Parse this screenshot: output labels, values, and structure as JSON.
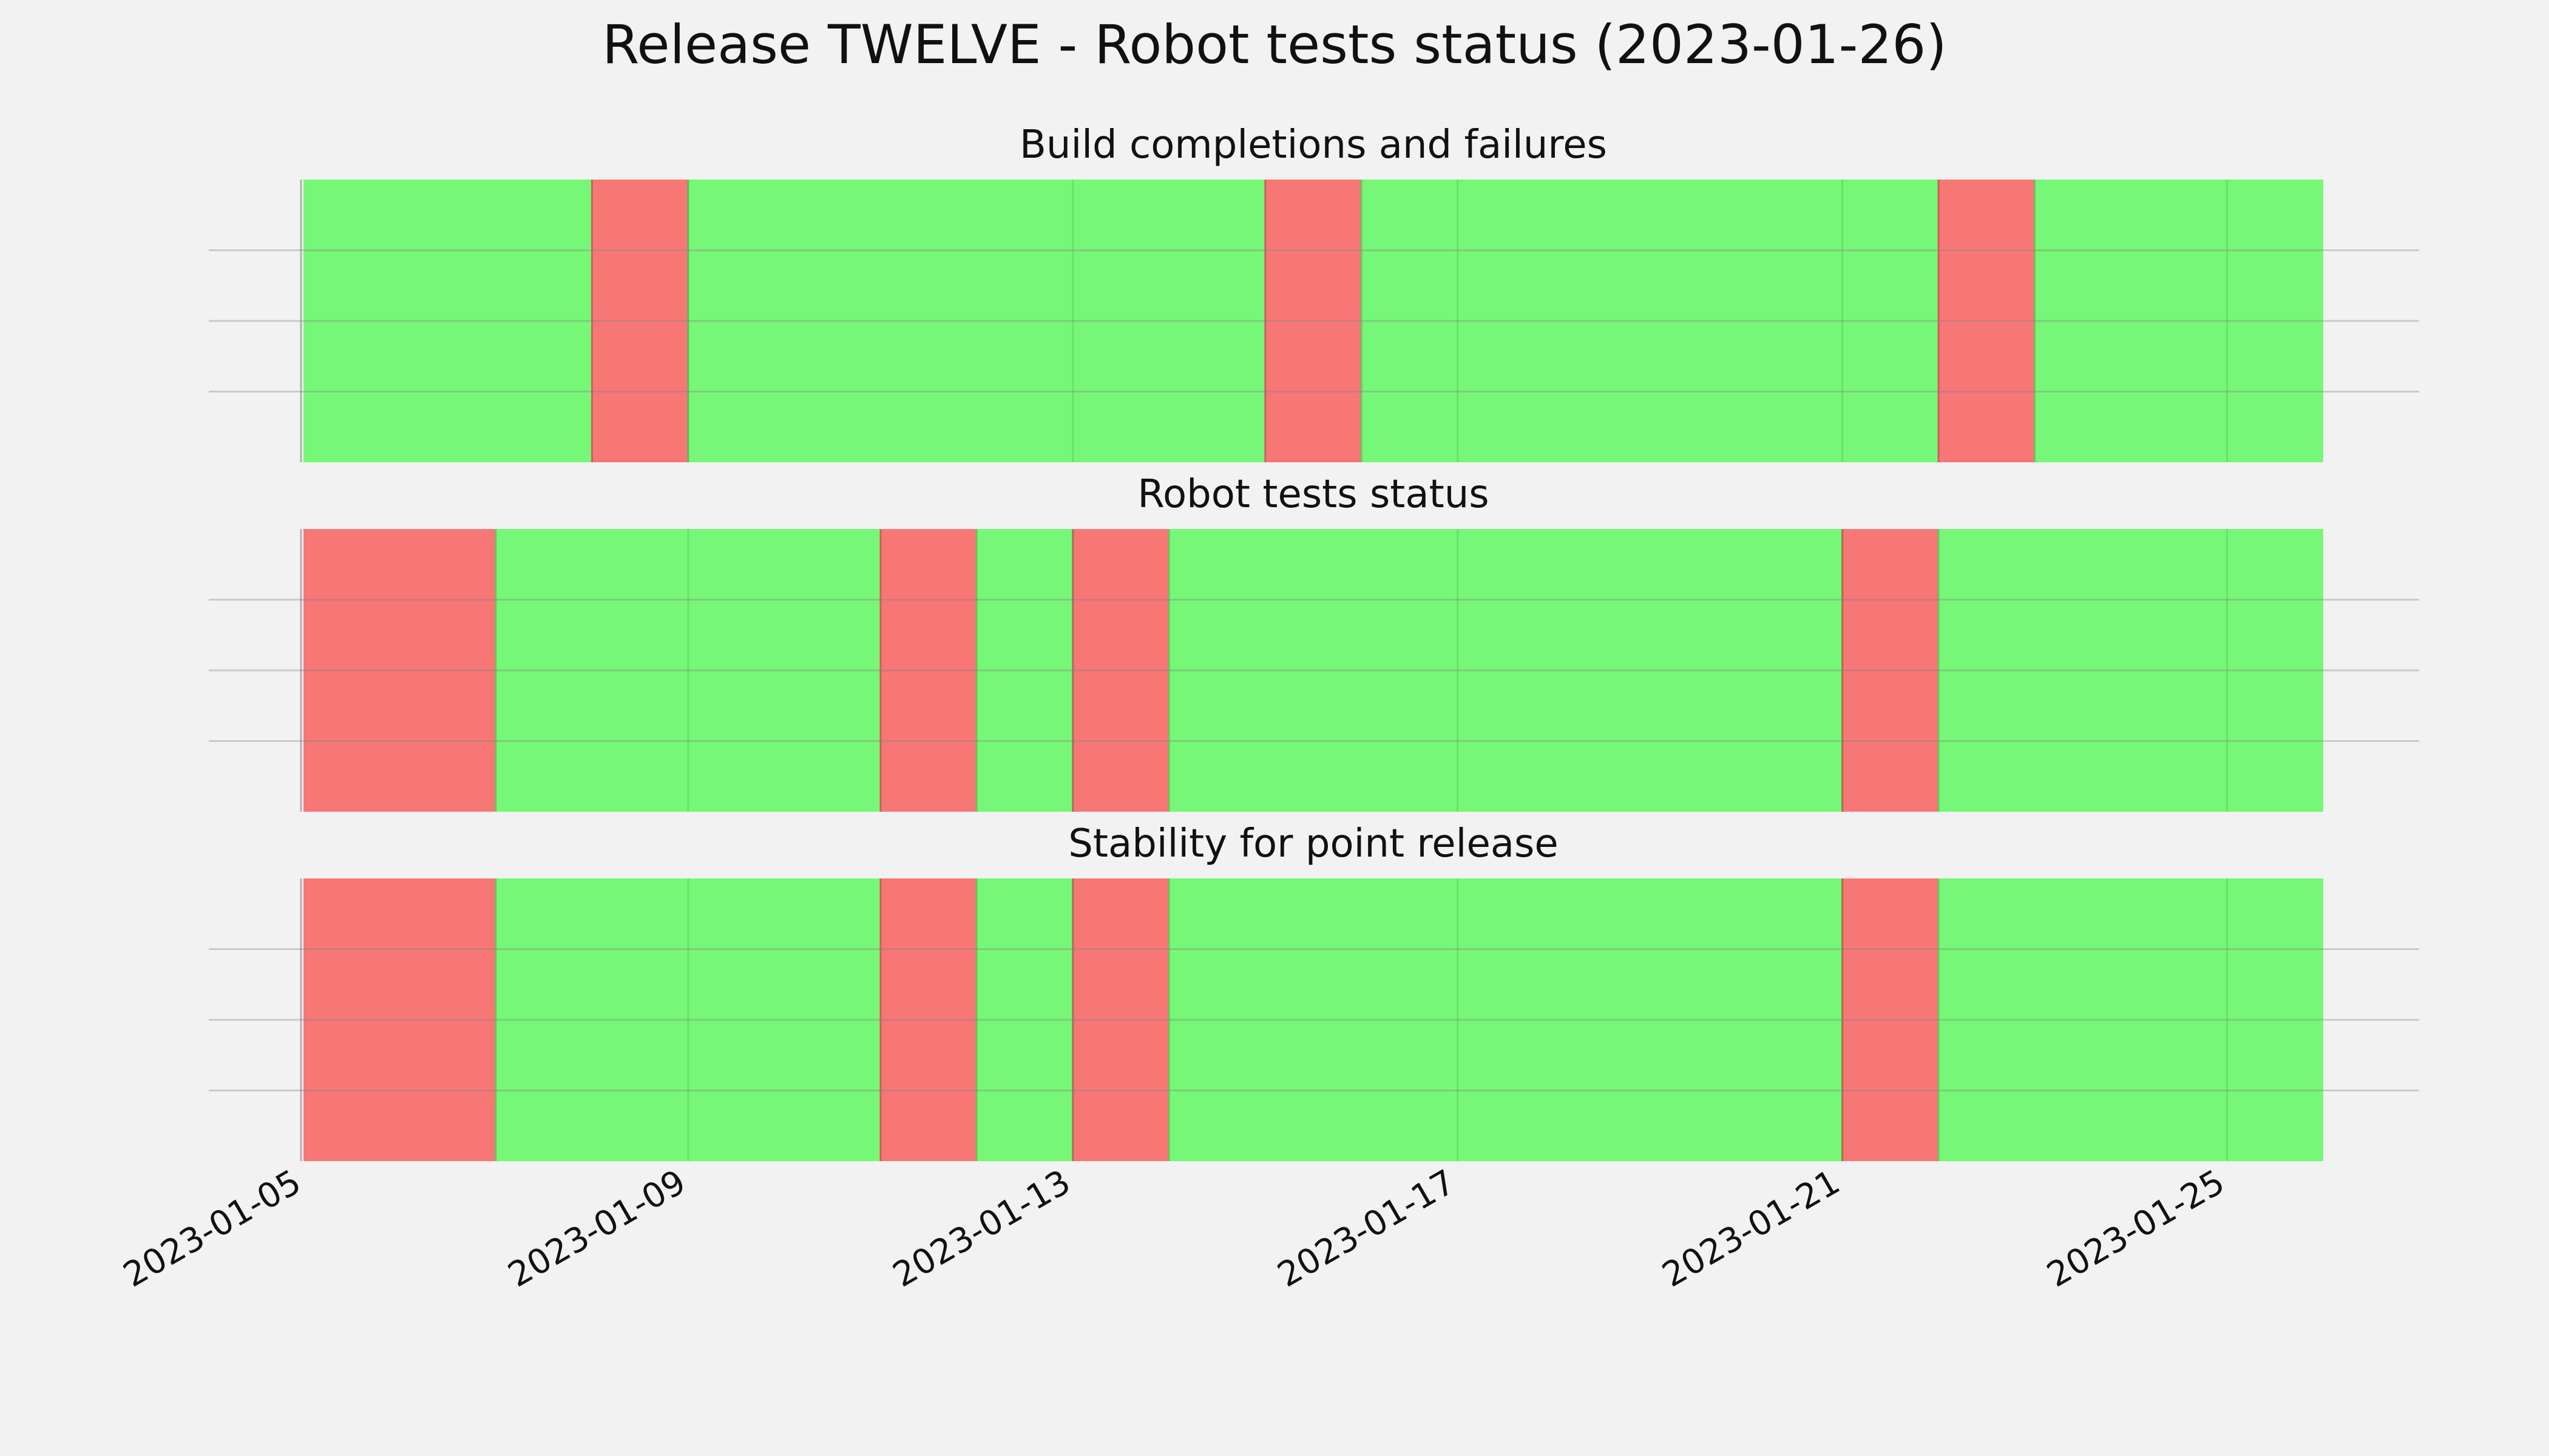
{
  "title": "Release TWELVE - Robot tests status (2023-01-26)",
  "colors": {
    "background": "#f2f2f2",
    "pass": "#77f777",
    "fail": "#f77777",
    "grid": "#c8c8c8"
  },
  "chart_data": {
    "type": "timeline",
    "x_axis": {
      "type": "date",
      "range": [
        "2023-01-05",
        "2023-01-26"
      ],
      "ticks": [
        "2023-01-05",
        "2023-01-09",
        "2023-01-13",
        "2023-01-17",
        "2023-01-21",
        "2023-01-25"
      ]
    },
    "grid": true,
    "panels": [
      {
        "title": "Build completions and failures",
        "segments": [
          {
            "start": "2023-01-05",
            "end": "2023-01-08",
            "status": "pass"
          },
          {
            "start": "2023-01-08",
            "end": "2023-01-09",
            "status": "fail"
          },
          {
            "start": "2023-01-09",
            "end": "2023-01-15",
            "status": "pass"
          },
          {
            "start": "2023-01-15",
            "end": "2023-01-16",
            "status": "fail"
          },
          {
            "start": "2023-01-16",
            "end": "2023-01-22",
            "status": "pass"
          },
          {
            "start": "2023-01-22",
            "end": "2023-01-23",
            "status": "fail"
          },
          {
            "start": "2023-01-23",
            "end": "2023-01-26",
            "status": "pass"
          }
        ]
      },
      {
        "title": "Robot tests status",
        "segments": [
          {
            "start": "2023-01-05",
            "end": "2023-01-07",
            "status": "fail"
          },
          {
            "start": "2023-01-07",
            "end": "2023-01-11",
            "status": "pass"
          },
          {
            "start": "2023-01-11",
            "end": "2023-01-12",
            "status": "fail"
          },
          {
            "start": "2023-01-12",
            "end": "2023-01-13",
            "status": "pass"
          },
          {
            "start": "2023-01-13",
            "end": "2023-01-14",
            "status": "fail"
          },
          {
            "start": "2023-01-14",
            "end": "2023-01-21",
            "status": "pass"
          },
          {
            "start": "2023-01-21",
            "end": "2023-01-22",
            "status": "fail"
          },
          {
            "start": "2023-01-22",
            "end": "2023-01-26",
            "status": "pass"
          }
        ]
      },
      {
        "title": "Stability for point release",
        "segments": [
          {
            "start": "2023-01-05",
            "end": "2023-01-07",
            "status": "fail"
          },
          {
            "start": "2023-01-07",
            "end": "2023-01-11",
            "status": "pass"
          },
          {
            "start": "2023-01-11",
            "end": "2023-01-12",
            "status": "fail"
          },
          {
            "start": "2023-01-12",
            "end": "2023-01-13",
            "status": "pass"
          },
          {
            "start": "2023-01-13",
            "end": "2023-01-14",
            "status": "fail"
          },
          {
            "start": "2023-01-14",
            "end": "2023-01-21",
            "status": "pass"
          },
          {
            "start": "2023-01-21",
            "end": "2023-01-22",
            "status": "fail"
          },
          {
            "start": "2023-01-22",
            "end": "2023-01-26",
            "status": "pass"
          }
        ]
      }
    ]
  }
}
